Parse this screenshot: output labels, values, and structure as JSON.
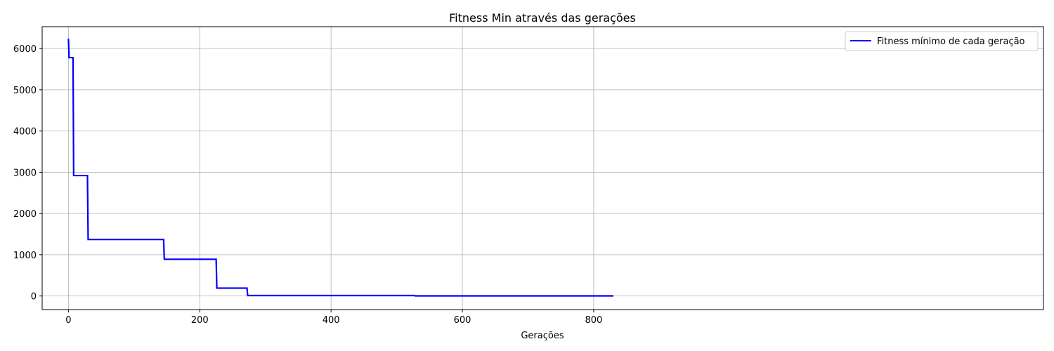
{
  "chart_data": {
    "type": "line",
    "title": "Fitness Min através das gerações",
    "xlabel": "Gerações",
    "ylabel": "",
    "xlim": [
      -40,
      1485
    ],
    "ylim": [
      -330,
      6530
    ],
    "xticks": [
      0,
      200,
      400,
      600,
      800
    ],
    "yticks": [
      0,
      1000,
      2000,
      3000,
      4000,
      5000,
      6000
    ],
    "grid": true,
    "legend_position": "top-right",
    "series": [
      {
        "name": "Fitness mínimo de cada geração",
        "color": "#0000ff",
        "x": [
          0,
          1,
          7,
          8,
          29,
          30,
          145,
          146,
          225,
          226,
          272,
          273,
          527,
          528,
          830
        ],
        "y": [
          6240,
          5780,
          5780,
          2920,
          2920,
          1370,
          1370,
          890,
          890,
          190,
          190,
          10,
          10,
          2,
          2
        ]
      }
    ]
  }
}
